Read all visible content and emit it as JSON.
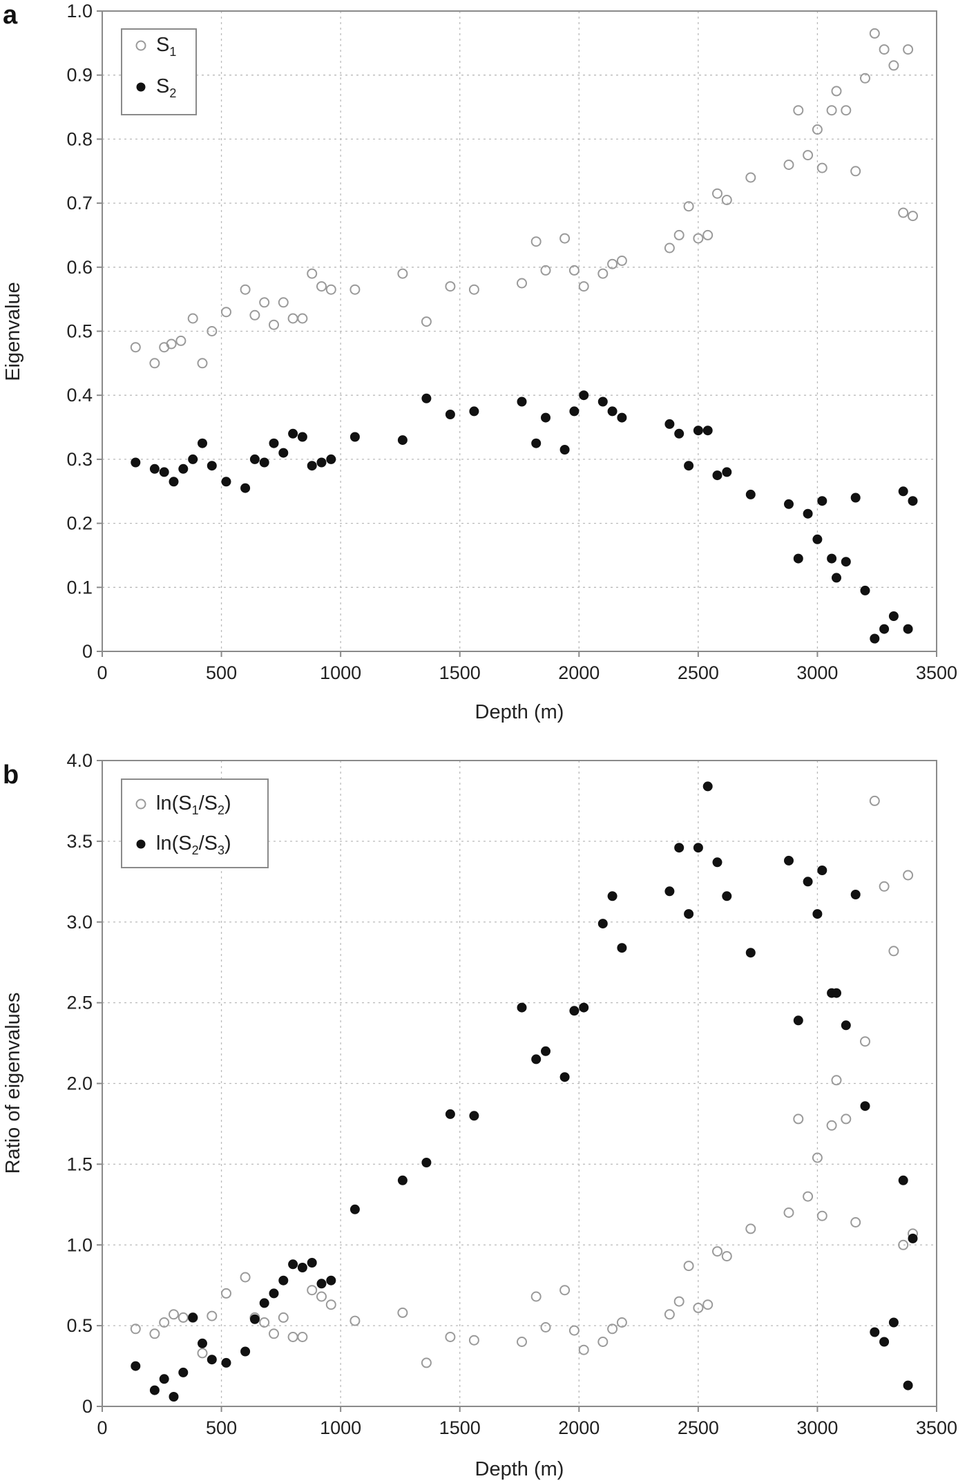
{
  "chart_data": [
    {
      "panel_label": "a",
      "type": "scatter",
      "xlabel": "Depth (m)",
      "ylabel": "Eigenvalue",
      "xlim": [
        0,
        3500
      ],
      "ylim": [
        0,
        1.0
      ],
      "xticks": [
        "0",
        "500",
        "1000",
        "1500",
        "2000",
        "2500",
        "3000",
        "3500"
      ],
      "yticks": [
        "0",
        "0.1",
        "0.2",
        "0.3",
        "0.4",
        "0.5",
        "0.6",
        "0.7",
        "0.8",
        "0.9",
        "1.0"
      ],
      "grid": true,
      "legend_position": "top-left",
      "series": [
        {
          "legend_main": "S",
          "legend_sub": "1",
          "marker": "open-circle",
          "color": "#9a9a9a",
          "x": [
            140,
            220,
            260,
            290,
            330,
            380,
            420,
            460,
            520,
            600,
            640,
            680,
            720,
            760,
            800,
            840,
            880,
            920,
            960,
            1060,
            1260,
            1360,
            1460,
            1560,
            1760,
            1820,
            1860,
            1940,
            1980,
            2020,
            2100,
            2140,
            2180,
            2380,
            2420,
            2460,
            2500,
            2540,
            2580,
            2620,
            2720,
            2880,
            2920,
            2960,
            3000,
            3020,
            3060,
            3080,
            3120,
            3160,
            3200,
            3240,
            3280,
            3320,
            3360,
            3380,
            3400
          ],
          "y": [
            0.475,
            0.45,
            0.475,
            0.48,
            0.485,
            0.52,
            0.45,
            0.5,
            0.53,
            0.565,
            0.525,
            0.545,
            0.51,
            0.545,
            0.52,
            0.52,
            0.59,
            0.57,
            0.565,
            0.565,
            0.59,
            0.515,
            0.57,
            0.565,
            0.575,
            0.64,
            0.595,
            0.645,
            0.595,
            0.57,
            0.59,
            0.605,
            0.61,
            0.63,
            0.65,
            0.695,
            0.645,
            0.65,
            0.715,
            0.705,
            0.74,
            0.76,
            0.845,
            0.775,
            0.815,
            0.755,
            0.845,
            0.875,
            0.845,
            0.75,
            0.895,
            0.965,
            0.94,
            0.915,
            0.685,
            0.94,
            0.68
          ]
        },
        {
          "legend_main": "S",
          "legend_sub": "2",
          "marker": "filled-circle",
          "color": "#111111",
          "x": [
            140,
            220,
            260,
            300,
            340,
            380,
            420,
            460,
            520,
            600,
            640,
            680,
            720,
            760,
            800,
            840,
            880,
            920,
            960,
            1060,
            1260,
            1360,
            1460,
            1560,
            1760,
            1820,
            1860,
            1940,
            1980,
            2020,
            2100,
            2140,
            2180,
            2380,
            2420,
            2460,
            2500,
            2540,
            2580,
            2620,
            2720,
            2880,
            2920,
            2960,
            3000,
            3020,
            3060,
            3080,
            3120,
            3160,
            3200,
            3240,
            3280,
            3320,
            3360,
            3380,
            3400
          ],
          "y": [
            0.295,
            0.285,
            0.28,
            0.265,
            0.285,
            0.3,
            0.325,
            0.29,
            0.265,
            0.255,
            0.3,
            0.295,
            0.325,
            0.31,
            0.34,
            0.335,
            0.29,
            0.295,
            0.3,
            0.335,
            0.33,
            0.395,
            0.37,
            0.375,
            0.39,
            0.325,
            0.365,
            0.315,
            0.375,
            0.4,
            0.39,
            0.375,
            0.365,
            0.355,
            0.34,
            0.29,
            0.345,
            0.345,
            0.275,
            0.28,
            0.245,
            0.23,
            0.145,
            0.215,
            0.175,
            0.235,
            0.145,
            0.115,
            0.14,
            0.24,
            0.095,
            0.02,
            0.035,
            0.055,
            0.25,
            0.035,
            0.235
          ]
        }
      ]
    },
    {
      "panel_label": "b",
      "type": "scatter",
      "xlabel": "Depth (m)",
      "ylabel": "Ratio of eigenvalues",
      "xlim": [
        0,
        3500
      ],
      "ylim": [
        0,
        4.0
      ],
      "xticks": [
        "0",
        "500",
        "1000",
        "1500",
        "2000",
        "2500",
        "3000",
        "3500"
      ],
      "yticks": [
        "0",
        "0.5",
        "1.0",
        "1.5",
        "2.0",
        "2.5",
        "3.0",
        "3.5",
        "4.0"
      ],
      "grid": true,
      "legend_position": "top-left",
      "series": [
        {
          "legend_parts": [
            "ln(S",
            "1",
            "/S",
            "2",
            ")"
          ],
          "marker": "open-circle",
          "color": "#9a9a9a",
          "x": [
            140,
            220,
            260,
            300,
            340,
            380,
            420,
            460,
            520,
            600,
            640,
            680,
            720,
            760,
            800,
            840,
            880,
            920,
            960,
            1060,
            1260,
            1360,
            1460,
            1560,
            1760,
            1820,
            1860,
            1940,
            1980,
            2020,
            2100,
            2140,
            2180,
            2380,
            2420,
            2460,
            2500,
            2540,
            2580,
            2620,
            2720,
            2880,
            2920,
            2960,
            3000,
            3020,
            3060,
            3080,
            3120,
            3160,
            3200,
            3240,
            3280,
            3320,
            3360,
            3380,
            3400
          ],
          "y": [
            0.48,
            0.45,
            0.52,
            0.57,
            0.55,
            0.55,
            0.33,
            0.56,
            0.7,
            0.8,
            0.55,
            0.52,
            0.45,
            0.55,
            0.43,
            0.43,
            0.72,
            0.68,
            0.63,
            0.53,
            0.58,
            0.27,
            0.43,
            0.41,
            0.4,
            0.68,
            0.49,
            0.72,
            0.47,
            0.35,
            0.4,
            0.48,
            0.52,
            0.57,
            0.65,
            0.87,
            0.61,
            0.63,
            0.96,
            0.93,
            1.1,
            1.2,
            1.78,
            1.3,
            1.54,
            1.18,
            1.74,
            2.02,
            1.78,
            1.14,
            2.26,
            3.75,
            3.22,
            2.82,
            1.0,
            3.29,
            1.07
          ]
        },
        {
          "legend_parts": [
            "ln(S",
            "2",
            "/S",
            "3",
            ")"
          ],
          "marker": "filled-circle",
          "color": "#111111",
          "x": [
            140,
            220,
            260,
            300,
            340,
            380,
            420,
            460,
            520,
            600,
            640,
            680,
            720,
            760,
            800,
            840,
            880,
            920,
            960,
            1060,
            1260,
            1360,
            1460,
            1560,
            1760,
            1820,
            1860,
            1940,
            1980,
            2020,
            2100,
            2140,
            2180,
            2380,
            2420,
            2460,
            2500,
            2540,
            2580,
            2620,
            2720,
            2880,
            2920,
            2960,
            3000,
            3020,
            3060,
            3080,
            3120,
            3160,
            3200,
            3240,
            3280,
            3320,
            3360,
            3380,
            3400
          ],
          "y": [
            0.25,
            0.1,
            0.17,
            0.06,
            0.21,
            0.55,
            0.39,
            0.29,
            0.27,
            0.34,
            0.54,
            0.64,
            0.7,
            0.78,
            0.88,
            0.86,
            0.89,
            0.76,
            0.78,
            1.22,
            1.4,
            1.51,
            1.81,
            1.8,
            2.47,
            2.15,
            2.2,
            2.04,
            2.45,
            2.47,
            2.99,
            3.16,
            2.84,
            3.19,
            3.46,
            3.05,
            3.46,
            3.84,
            3.37,
            3.16,
            2.81,
            3.38,
            2.39,
            3.25,
            3.05,
            3.32,
            2.56,
            2.56,
            2.36,
            3.17,
            1.86,
            0.46,
            0.4,
            0.52,
            1.4,
            0.13,
            1.04
          ]
        }
      ]
    }
  ]
}
